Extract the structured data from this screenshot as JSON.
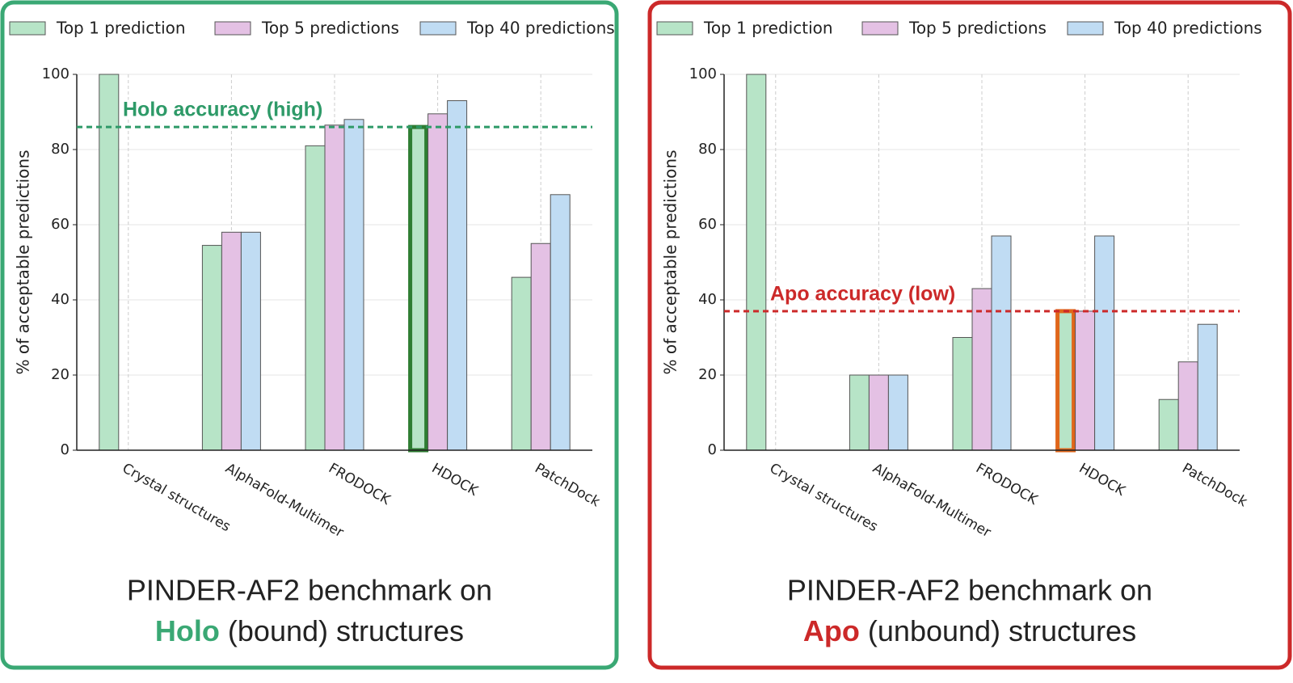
{
  "chart_data": [
    {
      "type": "bar",
      "title": {
        "line1": "PINDER-AF2 benchmark on",
        "emphasis": "Holo",
        "line2": "(bound) structures"
      },
      "accent_color": "#3aa874",
      "y_label": "% of acceptable predictions",
      "categories": [
        "Crystal structures",
        "AlphaFold-Multimer",
        "FRODOCK",
        "HDOCK",
        "PatchDock"
      ],
      "series": [
        {
          "name": "Top 1 prediction",
          "color": "#b7e4c7",
          "values": [
            100,
            54.5,
            81,
            86,
            46
          ]
        },
        {
          "name": "Top 5 predictions",
          "color": "#e4c1e4",
          "values": [
            null,
            58,
            86.5,
            89.5,
            55
          ]
        },
        {
          "name": "Top 40 predictions",
          "color": "#c0dcf3",
          "values": [
            null,
            58,
            88,
            93,
            68
          ]
        }
      ],
      "ylim": [
        0,
        100
      ],
      "yticks": [
        0,
        20,
        40,
        60,
        80,
        100
      ],
      "grid": true,
      "reference_line": {
        "value": 86,
        "label": "Holo accuracy (high)",
        "color": "#2e9a68"
      },
      "highlight": {
        "series": "Top 1 prediction",
        "category": "HDOCK",
        "color": "#2e7d32"
      }
    },
    {
      "type": "bar",
      "title": {
        "line1": "PINDER-AF2 benchmark on",
        "emphasis": "Apo",
        "line2": "(unbound) structures"
      },
      "accent_color": "#cc2929",
      "y_label": "% of acceptable predictions",
      "categories": [
        "Crystal structures",
        "AlphaFold-Multimer",
        "FRODOCK",
        "HDOCK",
        "PatchDock"
      ],
      "series": [
        {
          "name": "Top 1 prediction",
          "color": "#b7e4c7",
          "values": [
            100,
            20,
            30,
            37,
            13.5
          ]
        },
        {
          "name": "Top 5 predictions",
          "color": "#e4c1e4",
          "values": [
            null,
            20,
            43,
            37,
            23.5
          ]
        },
        {
          "name": "Top 40 predictions",
          "color": "#c0dcf3",
          "values": [
            null,
            20,
            57,
            57,
            33.5
          ]
        }
      ],
      "ylim": [
        0,
        100
      ],
      "yticks": [
        0,
        20,
        40,
        60,
        80,
        100
      ],
      "grid": true,
      "reference_line": {
        "value": 37,
        "label": "Apo accuracy (low)",
        "color": "#cc2929"
      },
      "highlight": {
        "series": "Top 1 prediction",
        "category": "HDOCK",
        "color": "#e0661a"
      }
    }
  ]
}
